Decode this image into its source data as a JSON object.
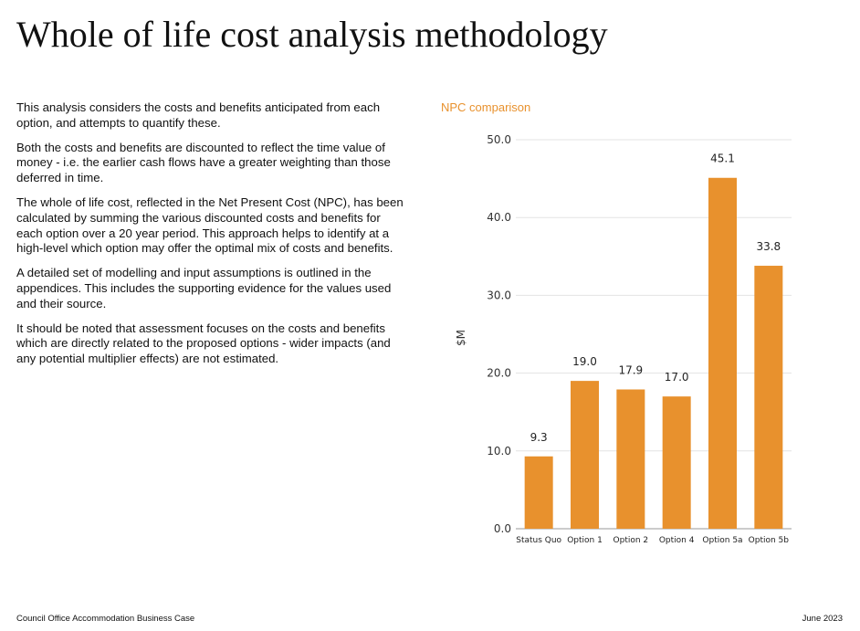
{
  "page": {
    "title": "Whole of life cost analysis methodology",
    "paragraphs": [
      "This analysis considers the costs and benefits anticipated from each option, and attempts to quantify these.",
      "Both the costs and benefits are discounted to reflect the time value of money - i.e. the earlier cash flows have a greater weighting than those deferred in time.",
      "The whole of life cost, reflected in the Net Present Cost (NPC), has been calculated by summing the various discounted costs and benefits for each option over a 20 year period. This approach helps to identify at a high-level which option may offer the optimal mix of costs and benefits.",
      "A detailed set of modelling and input assumptions is outlined in the appendices. This includes the supporting evidence for the values used and their source.",
      "It should be noted that assessment focuses on the costs and benefits which are directly related to the proposed options - wider impacts (and any potential multiplier effects) are not estimated."
    ]
  },
  "footer": {
    "left": "Council Office Accommodation Business Case",
    "right": "June 2023"
  },
  "chart_data": {
    "type": "bar",
    "title": "NPC comparison",
    "xlabel": "",
    "ylabel": "$M",
    "categories": [
      "Status Quo",
      "Option 1",
      "Option 2",
      "Option 4",
      "Option 5a",
      "Option 5b"
    ],
    "values": [
      9.3,
      19.0,
      17.9,
      17.0,
      45.1,
      33.8
    ],
    "value_labels": [
      "9.3",
      "19.0",
      "17.9",
      "17.0",
      "45.1",
      "33.8"
    ],
    "yticks": [
      "0.0",
      "10.0",
      "20.0",
      "30.0",
      "40.0",
      "50.0"
    ],
    "ylim": [
      0,
      50
    ],
    "grid": true,
    "legend": "none",
    "colors": {
      "bar": "#e8912d",
      "title": "#e8912d",
      "grid": "#e3e3e3",
      "axis": "#999999"
    }
  }
}
